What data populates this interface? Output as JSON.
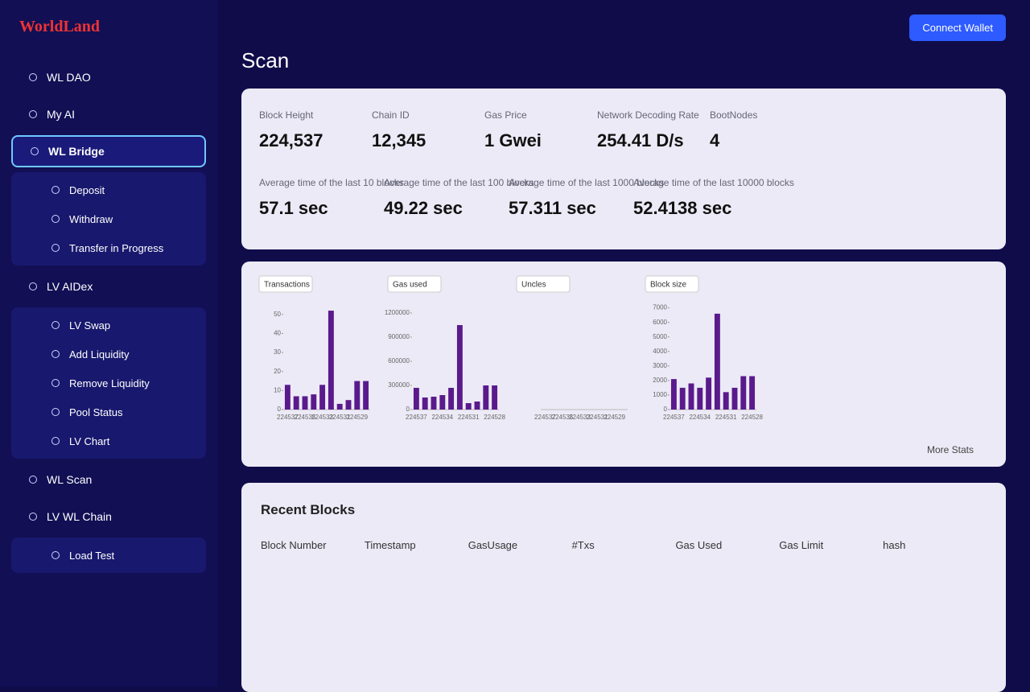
{
  "brand": "WorldLand",
  "connect_button": "Connect Wallet",
  "page_title": "Scan",
  "nav": [
    {
      "label": "WL DAO"
    },
    {
      "label": "My AI"
    },
    {
      "label": "WL Bridge",
      "children": [
        "Deposit",
        "Withdraw",
        "Transfer in Progress"
      ]
    },
    {
      "label": "LV AIDex",
      "children": [
        "LV Swap",
        "Add Liquidity",
        "Remove Liquidity",
        "Pool Status",
        "LV Chart"
      ]
    },
    {
      "label": "WL Scan"
    },
    {
      "label": "LV WL Chain",
      "children": [
        "Load Test"
      ]
    }
  ],
  "stats": [
    {
      "label": "Block Height",
      "value": "224,537"
    },
    {
      "label": "Chain ID",
      "value": "12,345"
    },
    {
      "label": "Gas Price",
      "value": "1 Gwei"
    },
    {
      "label": "Network Decoding Rate",
      "value": "254.41 D/s"
    },
    {
      "label": "BootNodes",
      "value": "4"
    }
  ],
  "averages": [
    {
      "label": "Average time of the last 10 blocks",
      "value": "57.1 sec"
    },
    {
      "label": "Average time of the last 100 blocks",
      "value": "49.22 sec"
    },
    {
      "label": "Average time of the last 1000 blocks",
      "value": "57.311 sec"
    },
    {
      "label": "Average time of the last 10000 blocks",
      "value": "52.4138 sec"
    }
  ],
  "charts": [
    {
      "type": "bar",
      "title": "Transactions",
      "color": "#5a1a8c",
      "categories": [
        "224537",
        null,
        "224535",
        null,
        "224533",
        null,
        "224531",
        null,
        "224529",
        null
      ],
      "values": [
        13,
        7,
        7,
        8,
        13,
        52,
        3,
        5,
        15,
        15
      ],
      "ylim": [
        0,
        55
      ],
      "yticks": [
        0,
        10,
        20,
        30,
        40,
        50
      ]
    },
    {
      "type": "bar",
      "title": "Gas used",
      "color": "#5a1a8c",
      "categories": [
        "224537",
        null,
        null,
        "224534",
        null,
        null,
        "224531",
        null,
        null,
        "224528"
      ],
      "values": [
        270000,
        150000,
        160000,
        180000,
        270000,
        1050000,
        80000,
        100000,
        300000,
        300000
      ],
      "ylim": [
        0,
        1300000
      ],
      "yticks": [
        0,
        300000,
        600000,
        900000,
        1200000
      ]
    },
    {
      "type": "bar",
      "title": "Uncles",
      "color": "#5a1a8c",
      "categories": [
        "224537",
        null,
        "224535",
        null,
        "224533",
        null,
        "224531",
        null,
        "224529",
        null
      ],
      "values": [
        0,
        0,
        0,
        0,
        0,
        0,
        0,
        0,
        0,
        0
      ],
      "ylim": [
        0,
        1
      ]
    },
    {
      "type": "bar",
      "title": "Block size",
      "color": "#5a1a8c",
      "categories": [
        "224537",
        null,
        null,
        "224534",
        null,
        null,
        "224531",
        null,
        null,
        "224528"
      ],
      "values": [
        2100,
        1500,
        1800,
        1500,
        2200,
        6600,
        1200,
        1500,
        2300,
        2300
      ],
      "ylim": [
        0,
        7200
      ],
      "yticks": [
        0,
        1000,
        2000,
        3000,
        4000,
        5000,
        6000,
        7000
      ]
    }
  ],
  "more_stats": "More Stats",
  "recent_blocks": {
    "title": "Recent Blocks",
    "columns": [
      "Block Number",
      "Timestamp",
      "GasUsage",
      "#Txs",
      "Gas Used",
      "Gas Limit",
      "hash"
    ]
  }
}
